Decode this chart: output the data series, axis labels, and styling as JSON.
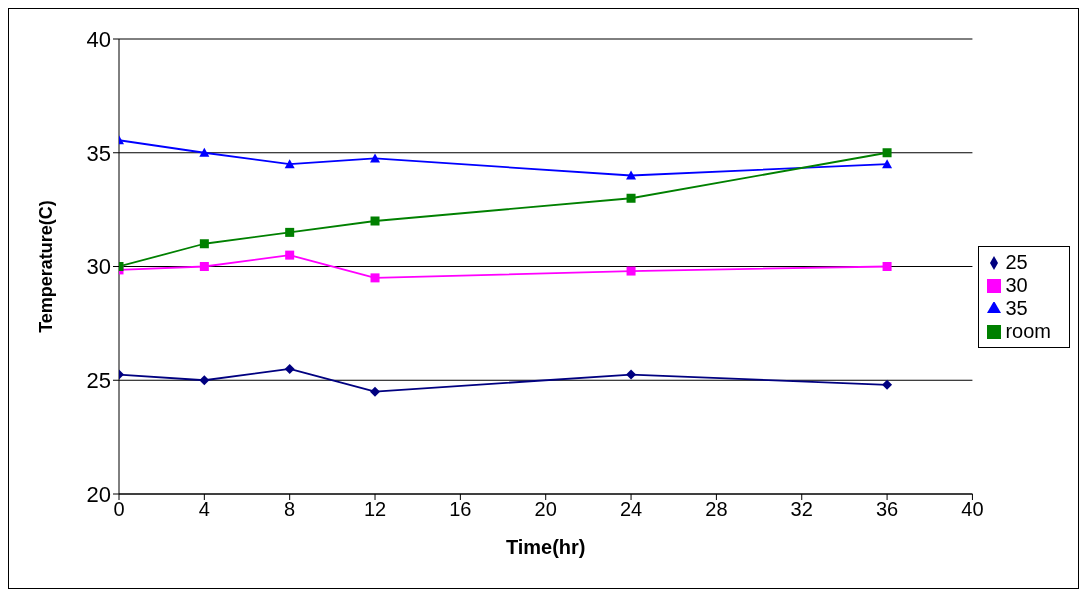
{
  "chart_data": {
    "type": "line",
    "xlabel": "Time(hr)",
    "ylabel": "Temperature(C)",
    "x": [
      0,
      4,
      8,
      12,
      24,
      36
    ],
    "series": [
      {
        "name": "25",
        "color": "#000080",
        "marker": "diamond",
        "values": [
          25.25,
          25,
          25.5,
          24.5,
          25.25,
          24.8
        ]
      },
      {
        "name": "30",
        "color": "#ff00ff",
        "marker": "square",
        "values": [
          29.85,
          30,
          30.5,
          29.5,
          29.8,
          30
        ]
      },
      {
        "name": "35",
        "color": "#0000ff",
        "marker": "triangle",
        "values": [
          35.55,
          35,
          34.5,
          34.75,
          34,
          34.5
        ]
      },
      {
        "name": "room",
        "color": "#008000",
        "marker": "square",
        "values": [
          30,
          31,
          31.5,
          32,
          33,
          35
        ]
      }
    ],
    "xlim": [
      0,
      40
    ],
    "xticks": [
      0,
      4,
      8,
      12,
      16,
      20,
      24,
      28,
      32,
      36,
      40
    ],
    "ylim": [
      20,
      40
    ],
    "yticks": [
      20,
      25,
      30,
      35,
      40
    ],
    "grid": "y",
    "legend": "right",
    "line_style": "solid"
  }
}
